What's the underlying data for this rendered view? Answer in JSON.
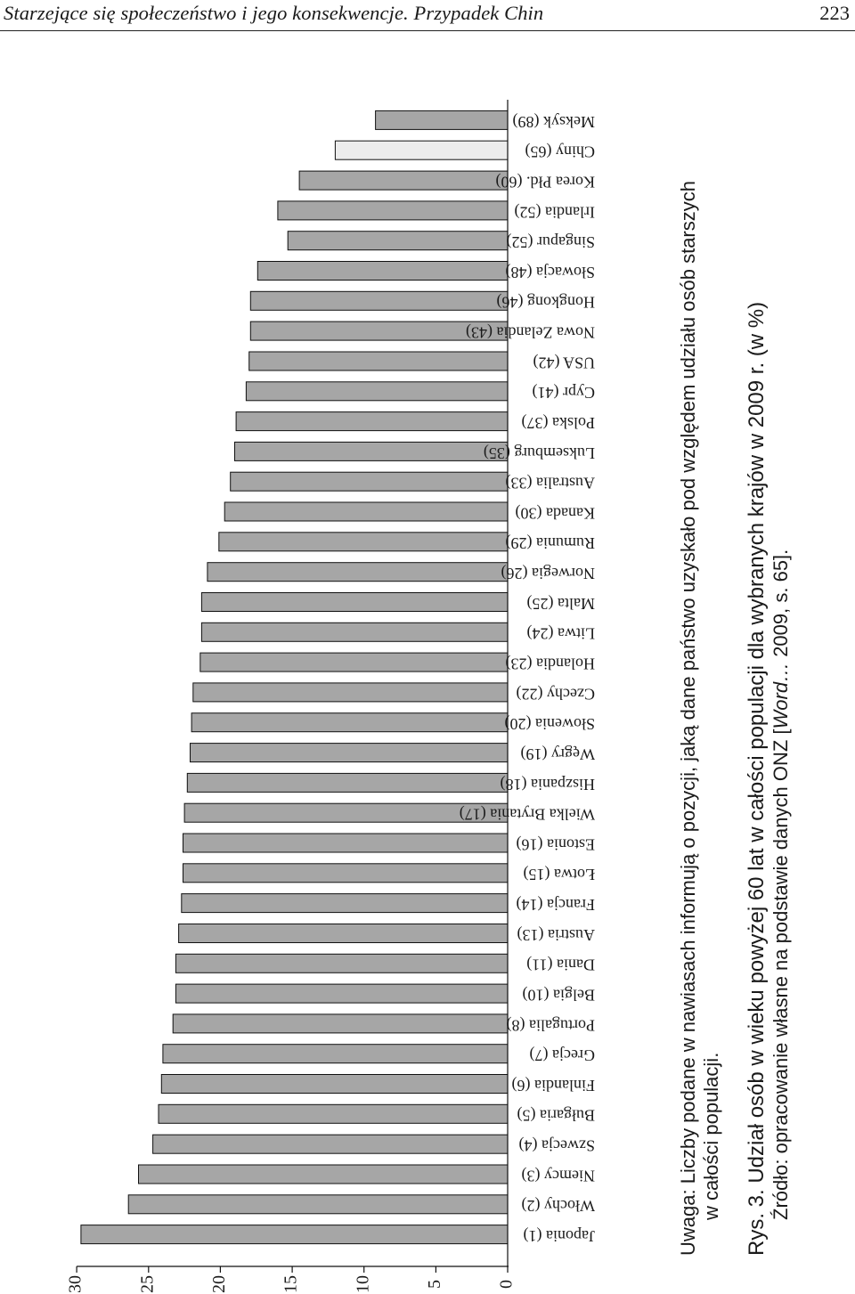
{
  "header": {
    "title": "Starzejące się społeczeństwo i jego konsekwencje. Przypadek Chin",
    "page_number": "223"
  },
  "caption": {
    "note_line1": "Uwaga: Liczby podane w nawiasach informują o pozycji, jaką dane państwo uzyskało pod względem udziału osób starszych",
    "note_line2": "w całości populacji.",
    "figure_title": "Rys. 3. Udział osób w wieku powyżej 60 lat w całości populacji dla wybranych krajów w 2009 r. (w %)",
    "source_prefix": "Źródło: opracowanie własne na podstawie danych ONZ [",
    "source_italic": "Word…",
    "source_suffix": " 2009, s. 65]."
  },
  "colors": {
    "bar_fill": "#a6a6a6",
    "highlight_fill": "#ececec",
    "bar_stroke": "#111111"
  },
  "chart_data": {
    "type": "bar",
    "orientation": "horizontal",
    "categories": [
      "Japonia (1)",
      "Włochy (2)",
      "Niemcy (3)",
      "Szwecja (4)",
      "Bułgaria (5)",
      "Finlandia (6)",
      "Grecja (7)",
      "Portugalia (8)",
      "Belgia (10)",
      "Dania (11)",
      "Austria (13)",
      "Francja (14)",
      "Łotwa (15)",
      "Estonia (16)",
      "Wielka Brytania (17)",
      "Hiszpania (18)",
      "Węgry (19)",
      "Słowenia (20)",
      "Czechy (22)",
      "Holandia (23)",
      "Litwa (24)",
      "Malta (25)",
      "Norwegia (26)",
      "Rumunia (29)",
      "Kanada (30)",
      "Australia (33)",
      "Luksemburg (35)",
      "Polska (37)",
      "Cypr (41)",
      "USA (42)",
      "Nowa Zelandia (43)",
      "Hongkong (46)",
      "Słowacja (48)",
      "Singapur (52)",
      "Irlandia (52)",
      "Korea Płd. (60)",
      "Chiny (65)",
      "Meksyk (89)"
    ],
    "values": [
      29.7,
      26.4,
      25.7,
      24.7,
      24.3,
      24.1,
      24.0,
      23.3,
      23.1,
      23.1,
      22.9,
      22.7,
      22.6,
      22.6,
      22.5,
      22.3,
      22.1,
      22.0,
      21.9,
      21.4,
      21.3,
      21.3,
      20.9,
      20.1,
      19.7,
      19.3,
      19.0,
      18.9,
      18.2,
      18.0,
      17.9,
      17.9,
      17.4,
      15.3,
      16.0,
      14.5,
      12.0,
      9.2
    ],
    "highlight_category": "Chiny (65)",
    "xlim": [
      0,
      30
    ],
    "ticks": [
      0,
      5,
      10,
      15,
      20,
      25,
      30
    ],
    "grid": false,
    "legend": "none"
  }
}
